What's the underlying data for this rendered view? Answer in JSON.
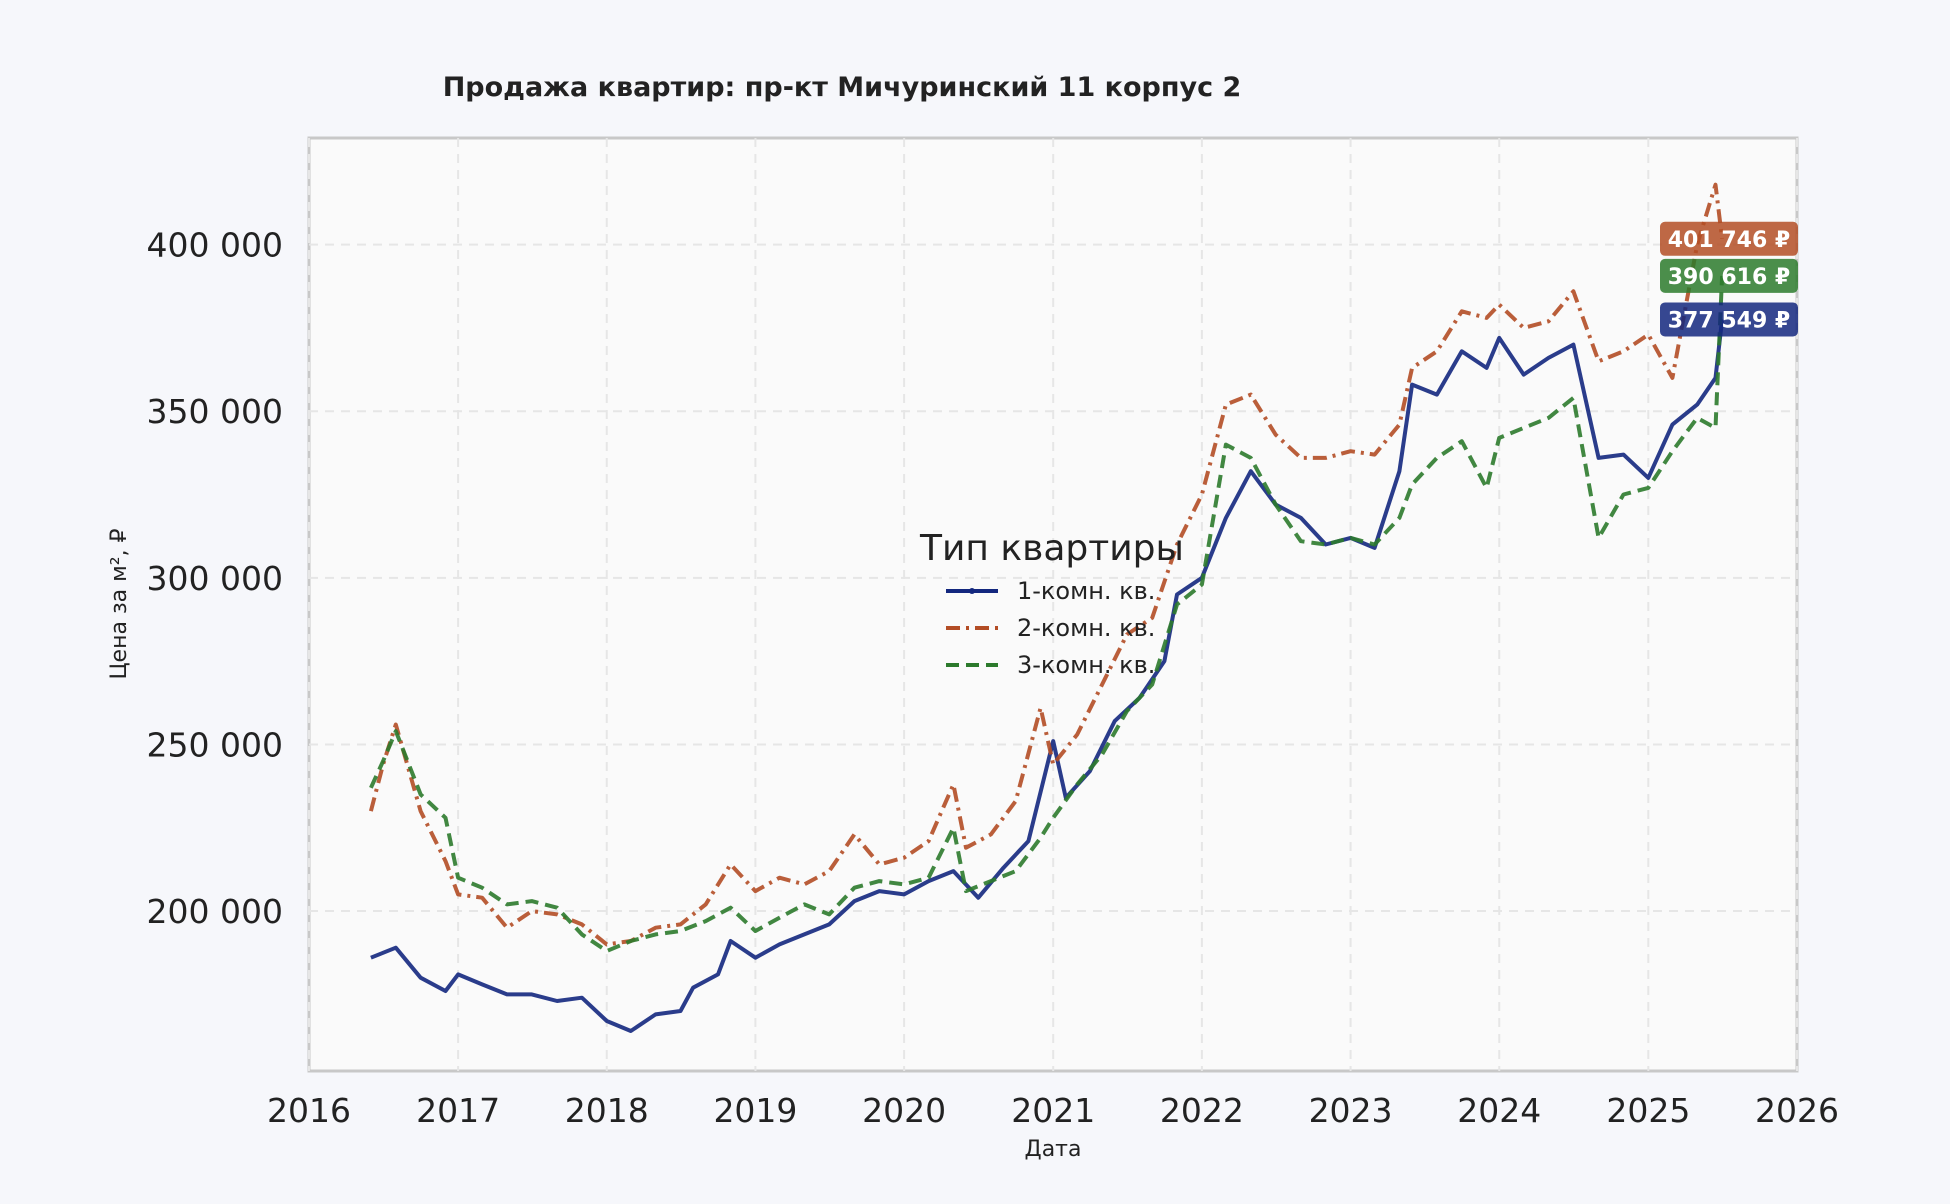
{
  "chart_data": {
    "type": "line",
    "title": "Продажа квартир: пр-кт Мичуринский 11 корпус 2",
    "xlabel": "Дата",
    "ylabel": "Цена за м², ₽",
    "xlim": [
      "2016-01-01",
      "2026-01-01"
    ],
    "ylim": [
      152000,
      432000
    ],
    "x_ticks": [
      "2016",
      "2017",
      "2018",
      "2019",
      "2020",
      "2021",
      "2022",
      "2023",
      "2024",
      "2025",
      "2026"
    ],
    "y_ticks": [
      {
        "value": 200000,
        "label": "200 000"
      },
      {
        "value": 250000,
        "label": "250 000"
      },
      {
        "value": 300000,
        "label": "300 000"
      },
      {
        "value": 350000,
        "label": "350 000"
      },
      {
        "value": 400000,
        "label": "400 000"
      }
    ],
    "grid": true,
    "legend": {
      "title": "Тип квартиры",
      "placement": "center"
    },
    "series": [
      {
        "name": "1-комн. кв.",
        "color": "#13277e",
        "style": "solid",
        "points": [
          [
            "2016-06-01",
            186000
          ],
          [
            "2016-08-01",
            189000
          ],
          [
            "2016-10-01",
            180000
          ],
          [
            "2016-12-01",
            176000
          ],
          [
            "2017-01-01",
            181000
          ],
          [
            "2017-03-01",
            178000
          ],
          [
            "2017-05-01",
            175000
          ],
          [
            "2017-07-01",
            175000
          ],
          [
            "2017-09-01",
            173000
          ],
          [
            "2017-11-01",
            174000
          ],
          [
            "2018-01-01",
            167000
          ],
          [
            "2018-03-01",
            164000
          ],
          [
            "2018-05-01",
            169000
          ],
          [
            "2018-07-01",
            170000
          ],
          [
            "2018-08-01",
            177000
          ],
          [
            "2018-10-01",
            181000
          ],
          [
            "2018-11-01",
            191000
          ],
          [
            "2019-01-01",
            186000
          ],
          [
            "2019-03-01",
            190000
          ],
          [
            "2019-05-01",
            193000
          ],
          [
            "2019-07-01",
            196000
          ],
          [
            "2019-09-01",
            203000
          ],
          [
            "2019-11-01",
            206000
          ],
          [
            "2020-01-01",
            205000
          ],
          [
            "2020-03-01",
            209000
          ],
          [
            "2020-05-01",
            212000
          ],
          [
            "2020-07-01",
            204000
          ],
          [
            "2020-09-01",
            213000
          ],
          [
            "2020-11-01",
            221000
          ],
          [
            "2021-01-01",
            251000
          ],
          [
            "2021-02-01",
            234000
          ],
          [
            "2021-04-01",
            242000
          ],
          [
            "2021-06-01",
            257000
          ],
          [
            "2021-08-01",
            264000
          ],
          [
            "2021-10-01",
            275000
          ],
          [
            "2021-11-01",
            295000
          ],
          [
            "2022-01-01",
            300000
          ],
          [
            "2022-03-01",
            318000
          ],
          [
            "2022-05-01",
            332000
          ],
          [
            "2022-07-01",
            322000
          ],
          [
            "2022-09-01",
            318000
          ],
          [
            "2022-11-01",
            310000
          ],
          [
            "2023-01-01",
            312000
          ],
          [
            "2023-03-01",
            309000
          ],
          [
            "2023-05-01",
            332000
          ],
          [
            "2023-06-01",
            358000
          ],
          [
            "2023-08-01",
            355000
          ],
          [
            "2023-10-01",
            368000
          ],
          [
            "2023-12-01",
            363000
          ],
          [
            "2024-01-01",
            372000
          ],
          [
            "2024-03-01",
            361000
          ],
          [
            "2024-05-01",
            366000
          ],
          [
            "2024-07-01",
            370000
          ],
          [
            "2024-09-01",
            336000
          ],
          [
            "2024-11-01",
            337000
          ],
          [
            "2025-01-01",
            330000
          ],
          [
            "2025-03-01",
            346000
          ],
          [
            "2025-05-01",
            352000
          ],
          [
            "2025-06-15",
            360000
          ],
          [
            "2025-07-01",
            377549
          ]
        ]
      },
      {
        "name": "2-комн. кв.",
        "color": "#b34d25",
        "style": "dashdot",
        "points": [
          [
            "2016-06-01",
            230000
          ],
          [
            "2016-07-01",
            244000
          ],
          [
            "2016-08-01",
            256000
          ],
          [
            "2016-10-01",
            230000
          ],
          [
            "2016-12-01",
            215000
          ],
          [
            "2017-01-01",
            205000
          ],
          [
            "2017-03-01",
            204000
          ],
          [
            "2017-05-01",
            195000
          ],
          [
            "2017-07-01",
            200000
          ],
          [
            "2017-09-01",
            199000
          ],
          [
            "2017-11-01",
            196000
          ],
          [
            "2018-01-01",
            190000
          ],
          [
            "2018-03-01",
            191000
          ],
          [
            "2018-05-01",
            195000
          ],
          [
            "2018-07-01",
            196000
          ],
          [
            "2018-09-01",
            202000
          ],
          [
            "2018-11-01",
            214000
          ],
          [
            "2019-01-01",
            206000
          ],
          [
            "2019-03-01",
            210000
          ],
          [
            "2019-05-01",
            208000
          ],
          [
            "2019-07-01",
            212000
          ],
          [
            "2019-09-01",
            223000
          ],
          [
            "2019-11-01",
            214000
          ],
          [
            "2020-01-01",
            216000
          ],
          [
            "2020-03-01",
            221000
          ],
          [
            "2020-05-01",
            238000
          ],
          [
            "2020-06-01",
            219000
          ],
          [
            "2020-08-01",
            223000
          ],
          [
            "2020-10-01",
            233000
          ],
          [
            "2020-12-01",
            261000
          ],
          [
            "2021-01-01",
            244000
          ],
          [
            "2021-03-01",
            253000
          ],
          [
            "2021-05-01",
            268000
          ],
          [
            "2021-07-01",
            283000
          ],
          [
            "2021-09-01",
            288000
          ],
          [
            "2021-11-01",
            310000
          ],
          [
            "2022-01-01",
            325000
          ],
          [
            "2022-03-01",
            352000
          ],
          [
            "2022-05-01",
            355000
          ],
          [
            "2022-07-01",
            343000
          ],
          [
            "2022-09-01",
            336000
          ],
          [
            "2022-11-01",
            336000
          ],
          [
            "2023-01-01",
            338000
          ],
          [
            "2023-03-01",
            337000
          ],
          [
            "2023-05-01",
            346000
          ],
          [
            "2023-06-01",
            363000
          ],
          [
            "2023-08-01",
            368000
          ],
          [
            "2023-10-01",
            380000
          ],
          [
            "2023-12-01",
            378000
          ],
          [
            "2024-01-01",
            382000
          ],
          [
            "2024-03-01",
            375000
          ],
          [
            "2024-05-01",
            377000
          ],
          [
            "2024-07-01",
            386000
          ],
          [
            "2024-09-01",
            365000
          ],
          [
            "2024-11-01",
            368000
          ],
          [
            "2025-01-01",
            373000
          ],
          [
            "2025-03-01",
            360000
          ],
          [
            "2025-05-01",
            400000
          ],
          [
            "2025-06-15",
            418000
          ],
          [
            "2025-07-01",
            401746
          ]
        ]
      },
      {
        "name": "3-комн. кв.",
        "color": "#2c7a2c",
        "style": "dashed",
        "points": [
          [
            "2016-06-01",
            237000
          ],
          [
            "2016-07-01",
            245000
          ],
          [
            "2016-08-01",
            254000
          ],
          [
            "2016-10-01",
            235000
          ],
          [
            "2016-12-01",
            228000
          ],
          [
            "2017-01-01",
            210000
          ],
          [
            "2017-03-01",
            207000
          ],
          [
            "2017-05-01",
            202000
          ],
          [
            "2017-07-01",
            203000
          ],
          [
            "2017-09-01",
            201000
          ],
          [
            "2017-11-01",
            193000
          ],
          [
            "2018-01-01",
            188000
          ],
          [
            "2018-03-01",
            191000
          ],
          [
            "2018-05-01",
            193000
          ],
          [
            "2018-07-01",
            194000
          ],
          [
            "2018-09-01",
            197000
          ],
          [
            "2018-11-01",
            201000
          ],
          [
            "2019-01-01",
            194000
          ],
          [
            "2019-03-01",
            198000
          ],
          [
            "2019-05-01",
            202000
          ],
          [
            "2019-07-01",
            199000
          ],
          [
            "2019-09-01",
            207000
          ],
          [
            "2019-11-01",
            209000
          ],
          [
            "2020-01-01",
            208000
          ],
          [
            "2020-03-01",
            210000
          ],
          [
            "2020-05-01",
            225000
          ],
          [
            "2020-06-01",
            206000
          ],
          [
            "2020-08-01",
            209000
          ],
          [
            "2020-10-01",
            212000
          ],
          [
            "2020-12-01",
            222000
          ],
          [
            "2021-01-01",
            228000
          ],
          [
            "2021-03-01",
            238000
          ],
          [
            "2021-05-01",
            247000
          ],
          [
            "2021-07-01",
            260000
          ],
          [
            "2021-09-01",
            268000
          ],
          [
            "2021-11-01",
            292000
          ],
          [
            "2022-01-01",
            298000
          ],
          [
            "2022-03-01",
            340000
          ],
          [
            "2022-05-01",
            336000
          ],
          [
            "2022-07-01",
            322000
          ],
          [
            "2022-09-01",
            311000
          ],
          [
            "2022-11-01",
            310000
          ],
          [
            "2023-01-01",
            312000
          ],
          [
            "2023-03-01",
            310000
          ],
          [
            "2023-05-01",
            318000
          ],
          [
            "2023-06-01",
            328000
          ],
          [
            "2023-08-01",
            336000
          ],
          [
            "2023-10-01",
            341000
          ],
          [
            "2023-12-01",
            327000
          ],
          [
            "2024-01-01",
            342000
          ],
          [
            "2024-03-01",
            345000
          ],
          [
            "2024-05-01",
            348000
          ],
          [
            "2024-07-01",
            354000
          ],
          [
            "2024-09-01",
            312000
          ],
          [
            "2024-11-01",
            325000
          ],
          [
            "2025-01-01",
            327000
          ],
          [
            "2025-03-01",
            338000
          ],
          [
            "2025-05-01",
            348000
          ],
          [
            "2025-06-15",
            345000
          ],
          [
            "2025-07-01",
            390616
          ]
        ]
      }
    ],
    "annotations": [
      {
        "series": "2-комн. кв.",
        "value": 401746,
        "label": "401 746 ₽",
        "color": "#b34d25"
      },
      {
        "series": "3-комн. кв.",
        "value": 390616,
        "label": "390 616 ₽",
        "color": "#2c7a2c"
      },
      {
        "series": "1-комн. кв.",
        "value": 377549,
        "label": "377 549 ₽",
        "color": "#13277e"
      }
    ]
  }
}
